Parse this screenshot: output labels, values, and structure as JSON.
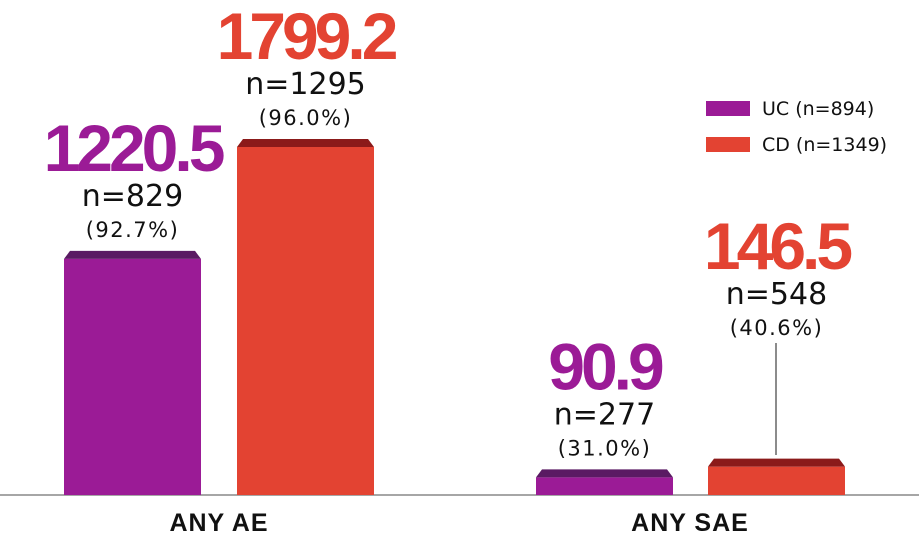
{
  "chart_data": {
    "type": "bar",
    "categories": [
      "ANY AE",
      "ANY SAE"
    ],
    "series": [
      {
        "name": "UC (n=894)",
        "color": "#9b1b96",
        "top_color": "#5a1a63",
        "values": [
          1220.5,
          90.9
        ],
        "value_labels": [
          "1220.5",
          "90.9"
        ],
        "n_labels": [
          "n=829",
          "n=277"
        ],
        "pct_labels": [
          "(92.7%)",
          "(31.0%)"
        ]
      },
      {
        "name": "CD (n=1349)",
        "color": "#e34332",
        "top_color": "#8b1a1a",
        "values": [
          1799.2,
          146.5
        ],
        "value_labels": [
          "1799.2",
          "146.5"
        ],
        "n_labels": [
          "n=1295",
          "n=548"
        ],
        "pct_labels": [
          "(96.0%)",
          "(40.6%)"
        ]
      }
    ],
    "ylim": [
      0,
      1799.2
    ],
    "grid": false,
    "legend_position": "top-right"
  }
}
